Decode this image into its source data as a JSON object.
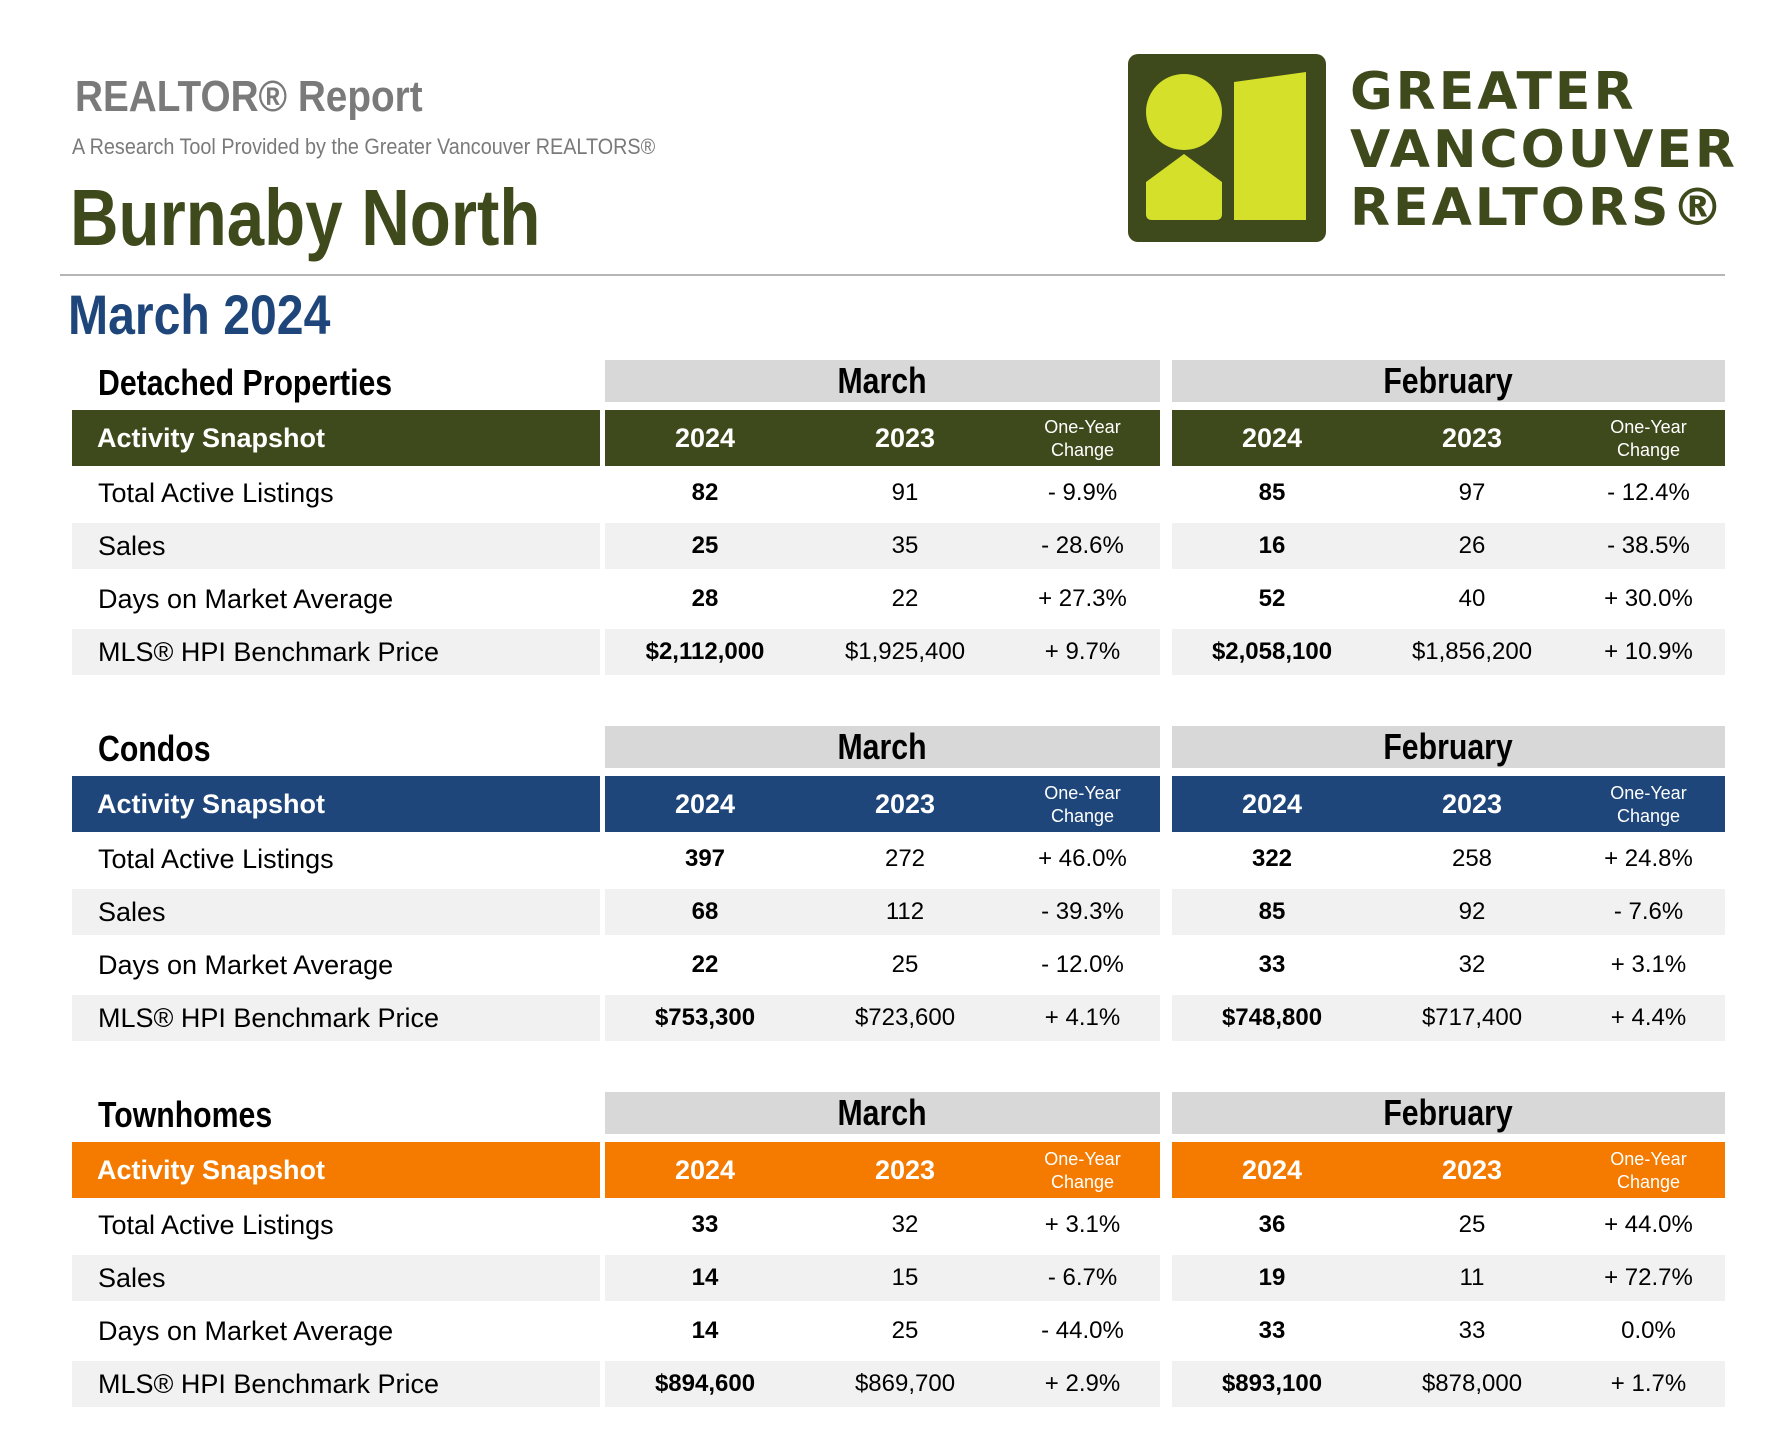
{
  "header": {
    "report_title": "REALTOR® Report",
    "subtitle": "A Research Tool Provided by the Greater Vancouver REALTORS®",
    "area": "Burnaby North",
    "period": "March 2024"
  },
  "logo": {
    "lines": [
      "GREATER",
      "VANCOUVER",
      "REALTORS®"
    ],
    "colors": {
      "dark": "#3f4a1c",
      "lime": "#d4e02a"
    }
  },
  "table_labels": {
    "snapshot": "Activity Snapshot",
    "months": [
      "March",
      "February"
    ],
    "years": [
      "2024",
      "2023"
    ],
    "change_line1": "One-Year",
    "change_line2": "Change"
  },
  "sections": [
    {
      "title": "Detached Properties",
      "color": "#3f4a1c",
      "rows": [
        {
          "label": "Total Active Listings",
          "mar_2024": "82",
          "mar_2023": "91",
          "mar_change": "- 9.9%",
          "feb_2024": "85",
          "feb_2023": "97",
          "feb_change": "- 12.4%"
        },
        {
          "label": "Sales",
          "mar_2024": "25",
          "mar_2023": "35",
          "mar_change": "- 28.6%",
          "feb_2024": "16",
          "feb_2023": "26",
          "feb_change": "- 38.5%"
        },
        {
          "label": "Days on Market Average",
          "mar_2024": "28",
          "mar_2023": "22",
          "mar_change": "+ 27.3%",
          "feb_2024": "52",
          "feb_2023": "40",
          "feb_change": "+ 30.0%"
        },
        {
          "label": "MLS® HPI Benchmark Price",
          "mar_2024": "$2,112,000",
          "mar_2023": "$1,925,400",
          "mar_change": "+ 9.7%",
          "feb_2024": "$2,058,100",
          "feb_2023": "$1,856,200",
          "feb_change": "+ 10.9%"
        }
      ]
    },
    {
      "title": "Condos",
      "color": "#1f467a",
      "rows": [
        {
          "label": "Total Active Listings",
          "mar_2024": "397",
          "mar_2023": "272",
          "mar_change": "+ 46.0%",
          "feb_2024": "322",
          "feb_2023": "258",
          "feb_change": "+ 24.8%"
        },
        {
          "label": "Sales",
          "mar_2024": "68",
          "mar_2023": "112",
          "mar_change": "- 39.3%",
          "feb_2024": "85",
          "feb_2023": "92",
          "feb_change": "- 7.6%"
        },
        {
          "label": "Days on Market Average",
          "mar_2024": "22",
          "mar_2023": "25",
          "mar_change": "- 12.0%",
          "feb_2024": "33",
          "feb_2023": "32",
          "feb_change": "+ 3.1%"
        },
        {
          "label": "MLS® HPI Benchmark Price",
          "mar_2024": "$753,300",
          "mar_2023": "$723,600",
          "mar_change": "+ 4.1%",
          "feb_2024": "$748,800",
          "feb_2023": "$717,400",
          "feb_change": "+ 4.4%"
        }
      ]
    },
    {
      "title": "Townhomes",
      "color": "#f47b00",
      "rows": [
        {
          "label": "Total Active Listings",
          "mar_2024": "33",
          "mar_2023": "32",
          "mar_change": "+ 3.1%",
          "feb_2024": "36",
          "feb_2023": "25",
          "feb_change": "+ 44.0%"
        },
        {
          "label": "Sales",
          "mar_2024": "14",
          "mar_2023": "15",
          "mar_change": "- 6.7%",
          "feb_2024": "19",
          "feb_2023": "11",
          "feb_change": "+ 72.7%"
        },
        {
          "label": "Days on Market Average",
          "mar_2024": "14",
          "mar_2023": "25",
          "mar_change": "- 44.0%",
          "feb_2024": "33",
          "feb_2023": "33",
          "feb_change": "0.0%"
        },
        {
          "label": "MLS® HPI Benchmark Price",
          "mar_2024": "$894,600",
          "mar_2023": "$869,700",
          "mar_change": "+ 2.9%",
          "feb_2024": "$893,100",
          "feb_2023": "$878,000",
          "feb_change": "+ 1.7%"
        }
      ]
    }
  ]
}
